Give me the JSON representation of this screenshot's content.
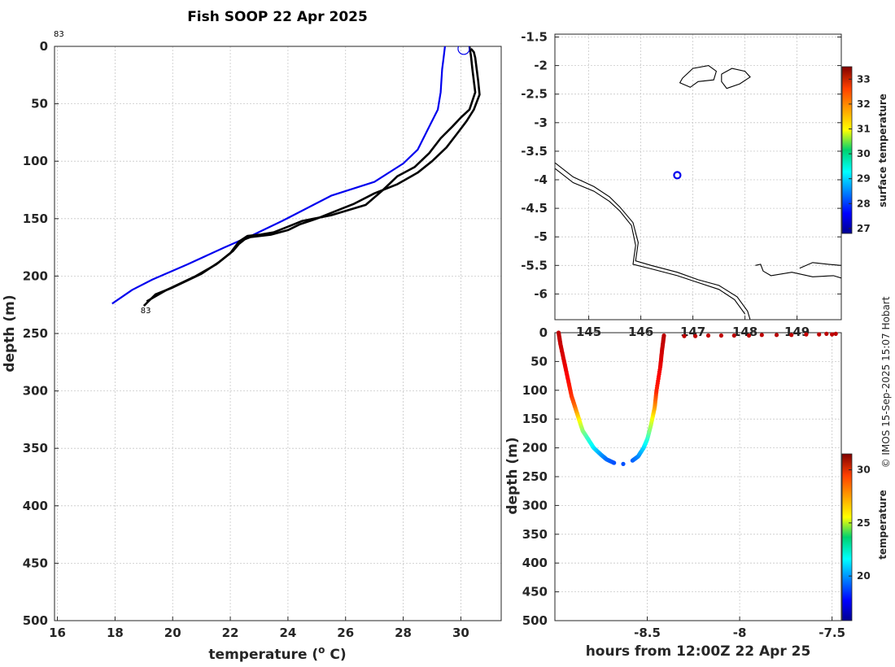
{
  "title": "Fish SOOP 22 Apr 2025",
  "credit": "© IMOS 15-Sep-2025 15:07 Hobart",
  "chart_data": [
    {
      "type": "line",
      "name": "temperature-depth-profile",
      "xlabel": "temperature (",
      "xlabel_sup": "o",
      "xlabel_end": " C)",
      "ylabel": "depth (m)",
      "xlim": [
        15.9,
        31.4
      ],
      "ylim": [
        0,
        500
      ],
      "xticks": [
        16,
        18,
        20,
        22,
        24,
        26,
        28,
        30
      ],
      "yticks": [
        0,
        50,
        100,
        150,
        200,
        250,
        300,
        350,
        400,
        450,
        500
      ],
      "annotation_top": "83",
      "annotation_bottom": "83",
      "marker": {
        "x": 30.1,
        "y": 2
      },
      "series": [
        {
          "name": "reference",
          "color": "#0000ee",
          "points": [
            [
              29.45,
              0
            ],
            [
              29.4,
              10
            ],
            [
              29.35,
              20
            ],
            [
              29.3,
              40
            ],
            [
              29.2,
              55
            ],
            [
              28.9,
              70
            ],
            [
              28.5,
              90
            ],
            [
              28.0,
              102
            ],
            [
              27.0,
              118
            ],
            [
              25.5,
              130
            ],
            [
              24.5,
              143
            ],
            [
              23.8,
              152
            ],
            [
              22.8,
              164
            ],
            [
              21.8,
              175
            ],
            [
              20.5,
              190
            ],
            [
              19.3,
              203
            ],
            [
              18.6,
              212
            ],
            [
              17.9,
              224
            ]
          ]
        },
        {
          "name": "profile-a",
          "color": "#000000",
          "points": [
            [
              30.35,
              2
            ],
            [
              30.45,
              5
            ],
            [
              30.5,
              10
            ],
            [
              30.55,
              20
            ],
            [
              30.6,
              30
            ],
            [
              30.65,
              42
            ],
            [
              30.45,
              55
            ],
            [
              30.2,
              65
            ],
            [
              29.9,
              75
            ],
            [
              29.5,
              88
            ],
            [
              29.0,
              100
            ],
            [
              28.5,
              110
            ],
            [
              27.8,
              120
            ],
            [
              27.0,
              128
            ],
            [
              26.3,
              137
            ],
            [
              25.0,
              150
            ],
            [
              24.4,
              155
            ],
            [
              24.0,
              160
            ],
            [
              23.4,
              164
            ],
            [
              22.7,
              166
            ],
            [
              22.5,
              168
            ],
            [
              22.3,
              172
            ],
            [
              22.1,
              178
            ],
            [
              21.6,
              188
            ],
            [
              21.0,
              198
            ],
            [
              20.0,
              210
            ],
            [
              19.4,
              216
            ],
            [
              19.0,
              226
            ]
          ]
        },
        {
          "name": "profile-b",
          "color": "#000000",
          "points": [
            [
              30.3,
              0
            ],
            [
              30.35,
              8
            ],
            [
              30.4,
              20
            ],
            [
              30.5,
              40
            ],
            [
              30.3,
              55
            ],
            [
              30.0,
              62
            ],
            [
              29.7,
              70
            ],
            [
              29.3,
              80
            ],
            [
              28.9,
              93
            ],
            [
              28.4,
              105
            ],
            [
              27.8,
              113
            ],
            [
              27.3,
              125
            ],
            [
              26.7,
              138
            ],
            [
              25.5,
              147
            ],
            [
              24.9,
              150
            ],
            [
              24.5,
              152
            ],
            [
              24.0,
              157
            ],
            [
              23.5,
              162
            ],
            [
              23.0,
              164
            ],
            [
              22.6,
              165
            ],
            [
              22.3,
              170
            ],
            [
              22.0,
              180
            ],
            [
              21.5,
              190
            ],
            [
              20.8,
              200
            ],
            [
              19.8,
              212
            ],
            [
              19.1,
              222
            ]
          ]
        }
      ]
    },
    {
      "type": "scatter",
      "name": "location-map",
      "colorbar_label": "surface temperature",
      "xlim": [
        144.35,
        149.85
      ],
      "ylim": [
        -6.45,
        -1.45
      ],
      "xticks": [
        145,
        146,
        147,
        148,
        149
      ],
      "yticks": [
        -1.5,
        -2,
        -2.5,
        -3,
        -3.5,
        -4,
        -4.5,
        -5,
        -5.5,
        -6
      ],
      "colorbar_ticks": [
        27,
        28,
        29,
        30,
        31,
        32,
        33
      ],
      "colorbar_range": [
        26.8,
        33.5
      ],
      "position_marker": {
        "lon": 146.7,
        "lat": -3.92
      },
      "coast_main": [
        [
          144.35,
          -3.7
        ],
        [
          144.7,
          -3.95
        ],
        [
          145.1,
          -4.12
        ],
        [
          145.4,
          -4.3
        ],
        [
          145.6,
          -4.48
        ],
        [
          145.85,
          -4.75
        ],
        [
          145.95,
          -5.1
        ],
        [
          145.9,
          -5.42
        ],
        [
          146.2,
          -5.5
        ],
        [
          146.7,
          -5.62
        ],
        [
          147.1,
          -5.75
        ],
        [
          147.5,
          -5.85
        ],
        [
          147.85,
          -6.05
        ],
        [
          148.05,
          -6.3
        ],
        [
          148.1,
          -6.45
        ]
      ],
      "coast_main_2": [
        [
          144.35,
          -3.8
        ],
        [
          144.7,
          -4.05
        ],
        [
          145.1,
          -4.2
        ],
        [
          145.4,
          -4.38
        ],
        [
          145.6,
          -4.55
        ],
        [
          145.82,
          -4.8
        ],
        [
          145.9,
          -5.15
        ],
        [
          145.85,
          -5.48
        ],
        [
          146.2,
          -5.56
        ],
        [
          146.7,
          -5.68
        ],
        [
          147.1,
          -5.8
        ],
        [
          147.5,
          -5.92
        ],
        [
          147.8,
          -6.1
        ],
        [
          148.0,
          -6.35
        ]
      ],
      "island_north": [
        [
          146.8,
          -2.22
        ],
        [
          147.0,
          -2.05
        ],
        [
          147.3,
          -2.0
        ],
        [
          147.45,
          -2.1
        ],
        [
          147.4,
          -2.25
        ],
        [
          147.1,
          -2.28
        ],
        [
          146.95,
          -2.38
        ],
        [
          146.75,
          -2.3
        ],
        [
          146.8,
          -2.22
        ]
      ],
      "island_north_2": [
        [
          147.55,
          -2.15
        ],
        [
          147.75,
          -2.05
        ],
        [
          148.0,
          -2.1
        ],
        [
          148.1,
          -2.2
        ],
        [
          147.9,
          -2.32
        ],
        [
          147.65,
          -2.4
        ],
        [
          147.55,
          -2.28
        ],
        [
          147.55,
          -2.15
        ]
      ],
      "island_se": [
        [
          148.2,
          -5.5
        ],
        [
          148.3,
          -5.48
        ],
        [
          148.35,
          -5.6
        ],
        [
          148.5,
          -5.68
        ],
        [
          148.9,
          -5.62
        ],
        [
          149.3,
          -5.7
        ],
        [
          149.7,
          -5.68
        ],
        [
          149.85,
          -5.72
        ]
      ],
      "island_se_2": [
        [
          149.05,
          -5.55
        ],
        [
          149.3,
          -5.45
        ],
        [
          149.6,
          -5.48
        ],
        [
          149.85,
          -5.5
        ]
      ]
    },
    {
      "type": "scatter",
      "name": "depth-time-section",
      "xlabel": "hours from 12:00Z 22 Apr 25",
      "ylabel": "depth (m)",
      "colorbar_label": "temperature",
      "xlim": [
        -9.0,
        -7.45
      ],
      "ylim": [
        0,
        500
      ],
      "xticks": [
        -8.5,
        -8,
        -7.5
      ],
      "yticks": [
        0,
        50,
        100,
        150,
        200,
        250,
        300,
        350,
        400,
        450,
        500
      ],
      "colorbar_ticks": [
        20,
        25,
        30
      ],
      "colorbar_range": [
        15.8,
        31.5
      ],
      "down_cast": [
        [
          -8.98,
          0,
          30.6
        ],
        [
          -8.97,
          20,
          30.4
        ],
        [
          -8.95,
          50,
          30.0
        ],
        [
          -8.93,
          80,
          29.5
        ],
        [
          -8.91,
          110,
          28.8
        ],
        [
          -8.89,
          130,
          27.8
        ],
        [
          -8.87,
          150,
          26.0
        ],
        [
          -8.85,
          170,
          24.0
        ],
        [
          -8.82,
          185,
          22.5
        ],
        [
          -8.79,
          200,
          21.5
        ],
        [
          -8.75,
          212,
          20.2
        ],
        [
          -8.72,
          220,
          19.5
        ],
        [
          -8.68,
          226,
          19.0
        ]
      ],
      "up_cast": [
        [
          -8.58,
          222,
          19.2
        ],
        [
          -8.55,
          215,
          19.8
        ],
        [
          -8.52,
          200,
          21.0
        ],
        [
          -8.5,
          185,
          22.2
        ],
        [
          -8.48,
          160,
          24.5
        ],
        [
          -8.46,
          130,
          27.0
        ],
        [
          -8.45,
          100,
          29.0
        ],
        [
          -8.43,
          60,
          29.8
        ],
        [
          -8.42,
          30,
          30.3
        ],
        [
          -8.41,
          5,
          30.6
        ]
      ],
      "surface_points": [
        [
          -8.3,
          6,
          30.5
        ],
        [
          -8.24,
          6,
          30.5
        ],
        [
          -8.17,
          5,
          30.4
        ],
        [
          -8.1,
          5,
          30.5
        ],
        [
          -8.03,
          5,
          30.6
        ],
        [
          -7.95,
          5,
          30.5
        ],
        [
          -7.88,
          4,
          30.5
        ],
        [
          -7.8,
          4,
          30.6
        ],
        [
          -7.72,
          4,
          30.5
        ],
        [
          -7.64,
          3,
          30.4
        ],
        [
          -7.57,
          3,
          30.5
        ],
        [
          -7.53,
          2,
          30.6
        ],
        [
          -7.5,
          3,
          30.5
        ],
        [
          -7.48,
          2,
          30.6
        ]
      ]
    }
  ]
}
